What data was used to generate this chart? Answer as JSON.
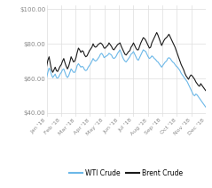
{
  "ylim": [
    38,
    102
  ],
  "yticks": [
    40,
    60,
    80,
    100
  ],
  "ytick_labels": [
    "$40.00",
    "$60.00",
    "$80.00",
    "$100.00"
  ],
  "xtick_labels": [
    "Jan '18",
    "Feb '18",
    "Mar '18",
    "Apr '18",
    "May '18",
    "Jun '18",
    "Jul '18",
    "Aug '18",
    "Sep '18",
    "Oct '18",
    "Nov '18",
    "Dec '18"
  ],
  "wti_color": "#6cb8e8",
  "brent_color": "#1a1a1a",
  "bg_color": "#ffffff",
  "grid_color": "#dddddd",
  "legend_wti": "WTI Crude",
  "legend_brent": "Brent Crude",
  "wti": [
    60.5,
    63.5,
    66.0,
    64.5,
    62.0,
    60.5,
    61.5,
    62.5,
    60.5,
    60.2,
    61.0,
    62.5,
    63.5,
    65.0,
    65.5,
    63.5,
    61.5,
    60.5,
    61.5,
    63.5,
    65.5,
    64.5,
    63.5,
    63.5,
    65.0,
    67.5,
    68.5,
    67.5,
    66.5,
    67.0,
    66.5,
    65.0,
    64.5,
    65.0,
    66.5,
    67.5,
    68.5,
    70.0,
    71.5,
    70.5,
    70.0,
    70.5,
    71.5,
    72.5,
    74.0,
    74.5,
    73.5,
    72.0,
    72.5,
    73.0,
    73.5,
    74.5,
    74.0,
    73.5,
    72.0,
    71.5,
    72.0,
    73.0,
    74.5,
    75.5,
    76.5,
    74.5,
    72.5,
    71.0,
    70.0,
    69.5,
    70.5,
    71.5,
    72.5,
    74.0,
    74.5,
    75.5,
    74.0,
    72.5,
    71.0,
    70.5,
    72.0,
    73.5,
    75.0,
    76.5,
    76.0,
    75.5,
    74.0,
    72.5,
    71.5,
    72.0,
    73.0,
    72.5,
    71.5,
    71.0,
    70.0,
    69.5,
    68.5,
    67.5,
    66.5,
    67.5,
    68.5,
    69.5,
    70.0,
    71.5,
    72.0,
    71.5,
    70.5,
    69.5,
    69.0,
    68.0,
    67.0,
    66.5,
    65.5,
    64.5,
    63.0,
    62.0,
    61.0,
    60.0,
    59.0,
    58.0,
    56.5,
    55.0,
    53.5,
    52.0,
    50.5,
    50.0,
    51.0,
    50.5,
    49.5,
    48.5,
    47.5,
    46.5,
    45.5,
    44.5,
    43.5
  ],
  "brent": [
    67.0,
    70.5,
    72.5,
    68.5,
    65.0,
    63.5,
    65.0,
    66.5,
    64.5,
    64.0,
    65.5,
    67.0,
    68.0,
    70.0,
    71.5,
    69.0,
    67.0,
    65.5,
    67.0,
    69.5,
    72.5,
    71.0,
    69.5,
    70.0,
    72.0,
    75.0,
    77.5,
    76.5,
    75.0,
    76.0,
    75.5,
    73.5,
    72.5,
    73.0,
    74.5,
    76.0,
    77.0,
    78.0,
    80.0,
    78.5,
    78.0,
    78.5,
    79.5,
    80.0,
    80.5,
    80.0,
    79.0,
    77.5,
    77.5,
    78.5,
    79.0,
    80.5,
    79.5,
    78.5,
    77.0,
    76.5,
    77.5,
    78.5,
    79.5,
    80.0,
    80.5,
    78.5,
    77.0,
    75.5,
    74.0,
    73.5,
    74.5,
    75.5,
    76.0,
    78.0,
    79.0,
    80.5,
    79.0,
    77.5,
    76.5,
    76.5,
    78.5,
    80.5,
    82.0,
    83.5,
    83.0,
    82.0,
    80.5,
    79.0,
    77.5,
    78.0,
    80.5,
    82.0,
    83.5,
    85.0,
    86.5,
    85.0,
    83.0,
    81.0,
    79.0,
    80.5,
    82.0,
    83.0,
    83.5,
    84.5,
    85.5,
    84.0,
    82.5,
    81.0,
    79.5,
    78.0,
    76.0,
    74.0,
    72.0,
    70.0,
    68.0,
    66.5,
    65.0,
    63.0,
    61.5,
    60.5,
    59.5,
    61.0,
    62.0,
    61.5,
    60.5,
    59.5,
    58.0,
    57.0,
    56.0,
    55.5,
    57.0,
    56.0,
    55.0,
    54.0,
    53.0
  ]
}
